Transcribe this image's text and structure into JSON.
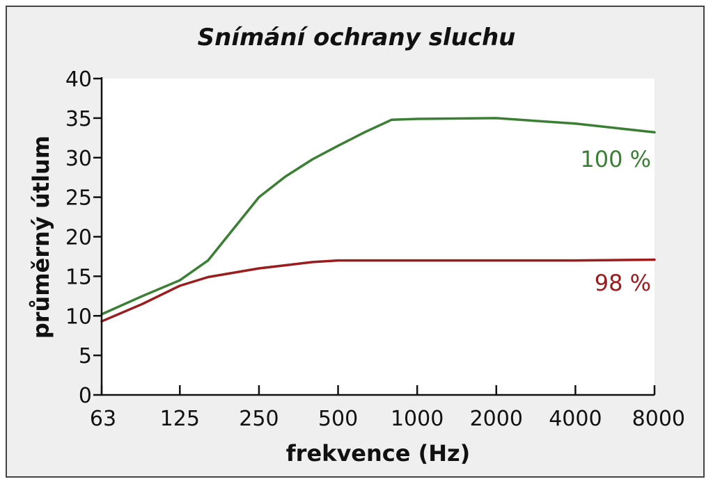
{
  "chart_data": {
    "type": "line",
    "title": "Snímání ochrany sluchu",
    "xlabel": "frekvence (Hz)",
    "ylabel": "průměrný útlum",
    "x_categories": [
      "63",
      "125",
      "250",
      "500",
      "1000",
      "2000",
      "4000",
      "8000"
    ],
    "ylim": [
      0,
      40
    ],
    "y_ticks": [
      "0",
      "5",
      "10",
      "15",
      "20",
      "25",
      "30",
      "35",
      "40"
    ],
    "grid": false,
    "series": [
      {
        "name": "100 %",
        "color": "#3a7f33",
        "points": [
          [
            63,
            10.2
          ],
          [
            90,
            12.5
          ],
          [
            125,
            14.5
          ],
          [
            160,
            17.0
          ],
          [
            200,
            21.0
          ],
          [
            250,
            25.0
          ],
          [
            315,
            27.6
          ],
          [
            400,
            29.8
          ],
          [
            500,
            31.5
          ],
          [
            630,
            33.2
          ],
          [
            800,
            34.8
          ],
          [
            1000,
            34.9
          ],
          [
            2000,
            35.0
          ],
          [
            4000,
            34.3
          ],
          [
            8000,
            33.2
          ]
        ]
      },
      {
        "name": "98 %",
        "color": "#9b1c1c",
        "points": [
          [
            63,
            9.3
          ],
          [
            90,
            11.5
          ],
          [
            125,
            13.8
          ],
          [
            160,
            14.9
          ],
          [
            250,
            16.0
          ],
          [
            400,
            16.8
          ],
          [
            500,
            17.0
          ],
          [
            1000,
            17.0
          ],
          [
            2000,
            17.0
          ],
          [
            4000,
            17.0
          ],
          [
            8000,
            17.1
          ]
        ]
      }
    ]
  }
}
